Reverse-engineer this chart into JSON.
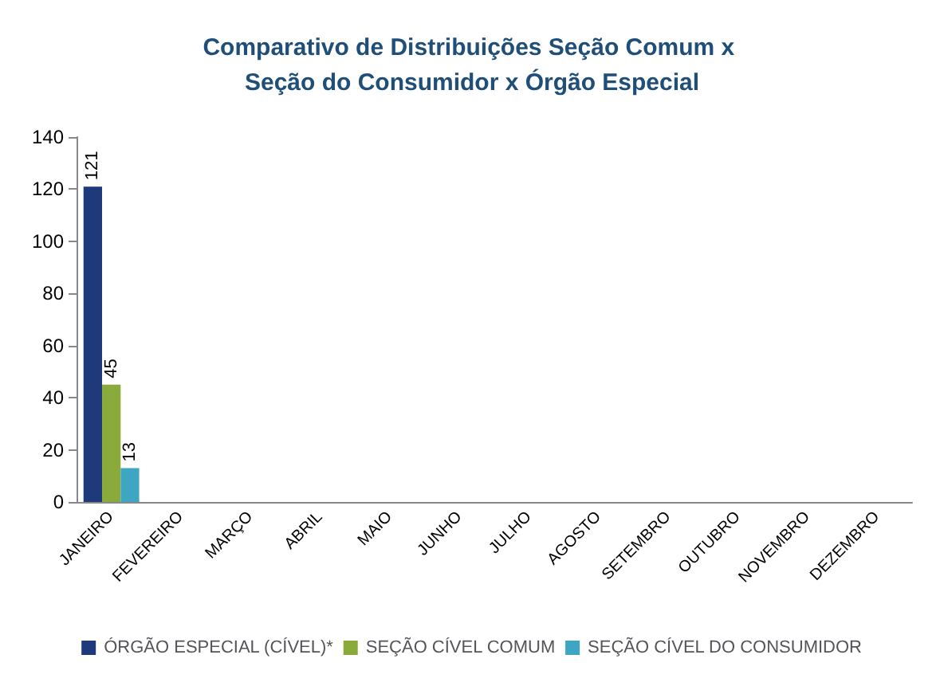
{
  "chart_data": {
    "type": "bar",
    "title": "Comparativo de Distribuições Seção Comum x Seção do Consumidor x Órgão Especial",
    "categories": [
      "JANEIRO",
      "FEVEREIRO",
      "MARÇO",
      "ABRIL",
      "MAIO",
      "JUNHO",
      "JULHO",
      "AGOSTO",
      "SETEMBRO",
      "OUTUBRO",
      "NOVEMBRO",
      "DEZEMBRO"
    ],
    "series": [
      {
        "name": "ÓRGÃO ESPECIAL (CÍVEL)*",
        "color": "#1f3a7a",
        "values": [
          121,
          null,
          null,
          null,
          null,
          null,
          null,
          null,
          null,
          null,
          null,
          null
        ]
      },
      {
        "name": "SEÇÃO CÍVEL COMUM",
        "color": "#8aab3c",
        "values": [
          45,
          null,
          null,
          null,
          null,
          null,
          null,
          null,
          null,
          null,
          null,
          null
        ]
      },
      {
        "name": "SEÇÃO CÍVEL DO CONSUMIDOR",
        "color": "#3ea6c2",
        "values": [
          13,
          null,
          null,
          null,
          null,
          null,
          null,
          null,
          null,
          null,
          null,
          null
        ]
      }
    ],
    "ylim": [
      0,
      140
    ],
    "yticks": [
      0,
      20,
      40,
      60,
      80,
      100,
      120,
      140
    ],
    "grid": false,
    "legend": "bottom",
    "data_labels": true
  }
}
